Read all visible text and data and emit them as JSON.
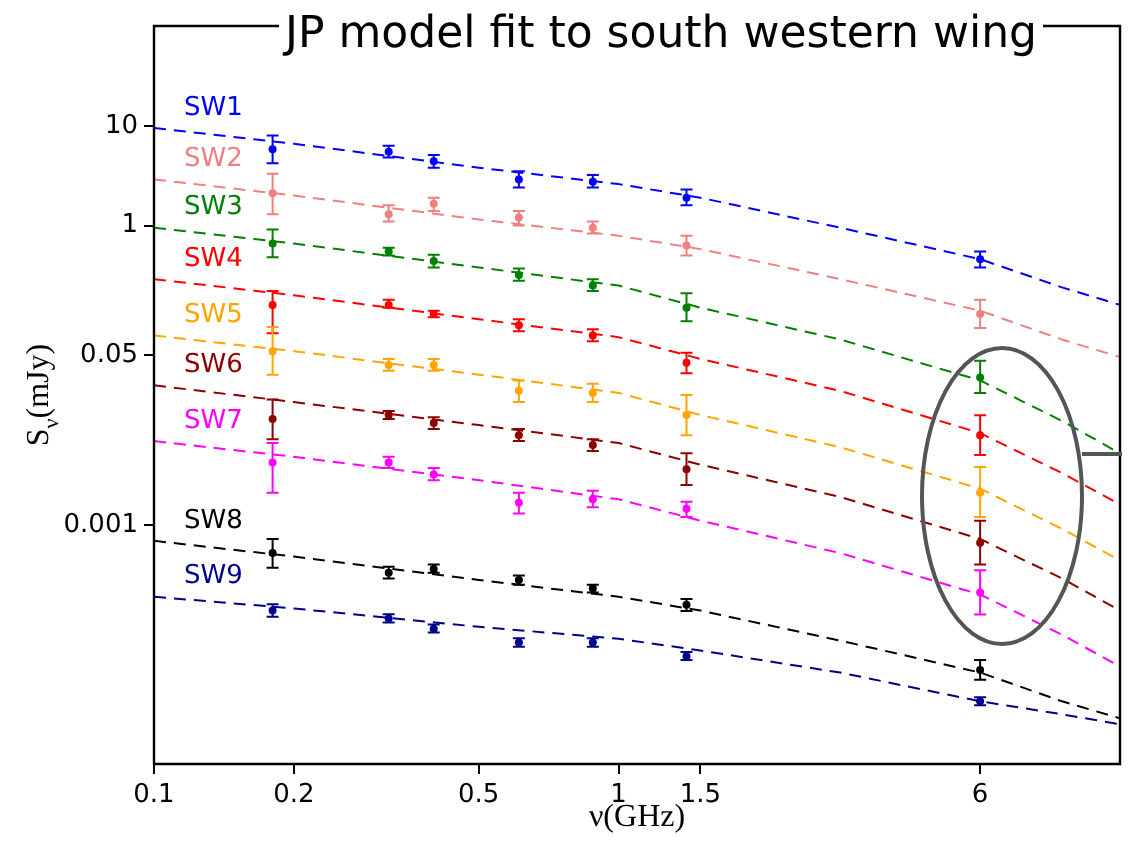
{
  "chart_data": {
    "type": "scatter",
    "title": "JP model fit to south western wing",
    "xlabel": "ν(GHz)",
    "ylabel": "S$_{ν}$(mJy)",
    "log": "xy",
    "xlim": [
      0.1,
      12
    ],
    "xticks": [
      0.1,
      0.2,
      0.5,
      1,
      1.5,
      6
    ],
    "ylim": [
      4e-06,
      100
    ],
    "yticks": [
      0.001,
      0.05,
      1,
      10
    ],
    "x": [
      0.18,
      0.32,
      0.4,
      0.61,
      0.88,
      1.4,
      6
    ],
    "series": [
      {
        "name": "SW1",
        "marker": "circle",
        "color": "#0000ff",
        "values": [
          5.8,
          5.5,
          4.4,
          2.9,
          2.75,
          1.9,
          0.46
        ],
        "errors": [
          [
            4.2,
            8.0
          ],
          [
            4.8,
            6.3
          ],
          [
            3.8,
            5.1
          ],
          [
            2.4,
            3.5
          ],
          [
            2.4,
            3.2
          ],
          [
            1.6,
            2.3
          ],
          [
            0.38,
            0.55
          ]
        ]
      },
      {
        "type": "line",
        "color": "#0000ff",
        "line_style": "dashed",
        "x": [
          0.1,
          0.2,
          0.5,
          1,
          1.5,
          3,
          6,
          9,
          12
        ],
        "values": [
          9.5,
          6.6,
          3.8,
          2.6,
          1.9,
          0.95,
          0.46,
          0.24,
          0.16
        ]
      },
      {
        "name": "SW2",
        "marker": "circle",
        "color": "#f08080",
        "values": [
          2.1,
          1.3,
          1.65,
          1.2,
          0.95,
          0.63,
          0.13
        ],
        "errors": [
          [
            1.3,
            3.3
          ],
          [
            1.1,
            1.6
          ],
          [
            1.4,
            1.9
          ],
          [
            1.0,
            1.4
          ],
          [
            0.83,
            1.1
          ],
          [
            0.5,
            0.79
          ],
          [
            0.094,
            0.18
          ]
        ]
      },
      {
        "type": "line",
        "color": "#f08080",
        "line_style": "dashed",
        "x": [
          0.1,
          0.2,
          0.5,
          1,
          1.5,
          3,
          6,
          9,
          12
        ],
        "values": [
          2.9,
          2.0,
          1.15,
          0.79,
          0.58,
          0.29,
          0.14,
          0.072,
          0.048
        ]
      },
      {
        "name": "SW3",
        "marker": "circle",
        "color": "#008000",
        "values": [
          0.66,
          0.55,
          0.44,
          0.32,
          0.25,
          0.15,
          0.03
        ],
        "errors": [
          [
            0.48,
            0.91
          ],
          [
            0.5,
            0.6
          ],
          [
            0.38,
            0.51
          ],
          [
            0.28,
            0.37
          ],
          [
            0.22,
            0.29
          ],
          [
            0.11,
            0.21
          ],
          [
            0.021,
            0.044
          ]
        ]
      },
      {
        "type": "line",
        "color": "#008000",
        "line_style": "dashed",
        "x": [
          0.1,
          0.2,
          0.5,
          1,
          1.5,
          3,
          6,
          9,
          12
        ],
        "values": [
          0.95,
          0.66,
          0.38,
          0.25,
          0.15,
          0.072,
          0.028,
          0.011,
          0.0052
        ]
      },
      {
        "name": "SW4",
        "marker": "circle",
        "color": "#ff0000",
        "values": [
          0.16,
          0.16,
          0.13,
          0.1,
          0.079,
          0.042,
          0.0079
        ],
        "errors": [
          [
            0.083,
            0.22
          ],
          [
            0.15,
            0.18
          ],
          [
            0.12,
            0.14
          ],
          [
            0.087,
            0.115
          ],
          [
            0.069,
            0.091
          ],
          [
            0.033,
            0.053
          ],
          [
            0.005,
            0.0125
          ]
        ]
      },
      {
        "type": "line",
        "color": "#ff0000",
        "line_style": "dashed",
        "x": [
          0.1,
          0.2,
          0.5,
          1,
          1.5,
          3,
          6,
          9,
          12
        ],
        "values": [
          0.29,
          0.2,
          0.115,
          0.076,
          0.046,
          0.022,
          0.0083,
          0.0033,
          0.0016
        ]
      },
      {
        "name": "SW5",
        "marker": "circle",
        "color": "#ffa500",
        "values": [
          0.055,
          0.04,
          0.04,
          0.022,
          0.021,
          0.0126,
          0.0021
        ],
        "errors": [
          [
            0.032,
            0.096
          ],
          [
            0.035,
            0.046
          ],
          [
            0.035,
            0.046
          ],
          [
            0.017,
            0.028
          ],
          [
            0.017,
            0.026
          ],
          [
            0.0079,
            0.02
          ],
          [
            0.0012,
            0.0038
          ]
        ]
      },
      {
        "type": "line",
        "color": "#ffa500",
        "line_style": "dashed",
        "x": [
          0.1,
          0.2,
          0.5,
          1,
          1.5,
          3,
          6,
          9,
          12
        ],
        "values": [
          0.079,
          0.055,
          0.032,
          0.021,
          0.0126,
          0.006,
          0.0023,
          0.00091,
          0.00044
        ]
      },
      {
        "name": "SW6",
        "marker": "circle",
        "color": "#8b0000",
        "values": [
          0.0115,
          0.0126,
          0.0105,
          0.0079,
          0.0063,
          0.0036,
          0.00066
        ],
        "errors": [
          [
            0.0072,
            0.018
          ],
          [
            0.0115,
            0.0138
          ],
          [
            0.0091,
            0.012
          ],
          [
            0.0069,
            0.0091
          ],
          [
            0.0055,
            0.0072
          ],
          [
            0.0025,
            0.0052
          ],
          [
            0.0004,
            0.0011
          ]
        ]
      },
      {
        "type": "line",
        "color": "#8b0000",
        "line_style": "dashed",
        "x": [
          0.1,
          0.2,
          0.5,
          1,
          1.5,
          3,
          6,
          9,
          12
        ],
        "values": [
          0.025,
          0.017,
          0.01,
          0.0066,
          0.004,
          0.0019,
          0.00072,
          0.00029,
          0.000138
        ]
      },
      {
        "name": "SW7",
        "marker": "circle",
        "color": "#ff00ff",
        "values": [
          0.0042,
          0.0042,
          0.0032,
          0.00166,
          0.0018,
          0.00145,
          0.00021
        ],
        "errors": [
          [
            0.0021,
            0.0066
          ],
          [
            0.0037,
            0.0048
          ],
          [
            0.0028,
            0.0037
          ],
          [
            0.0013,
            0.0021
          ],
          [
            0.0015,
            0.0022
          ],
          [
            0.0012,
            0.0017
          ],
          [
            0.000126,
            0.00035
          ]
        ]
      },
      {
        "type": "line",
        "color": "#ff00ff",
        "line_style": "dashed",
        "x": [
          0.1,
          0.2,
          0.5,
          1,
          1.5,
          3,
          6,
          9,
          12
        ],
        "values": [
          0.0069,
          0.0048,
          0.0028,
          0.0018,
          0.0011,
          0.00052,
          0.0002,
          7.9e-05,
          3.8e-05
        ]
      },
      {
        "name": "SW8",
        "marker": "circle",
        "color": "#000000",
        "values": [
          0.00052,
          0.00033,
          0.00036,
          0.00028,
          0.00023,
          0.000158,
          3.5e-05
        ],
        "errors": [
          [
            0.00037,
            0.00072
          ],
          [
            0.00029,
            0.00038
          ],
          [
            0.00033,
            0.0004
          ],
          [
            0.00025,
            0.00031
          ],
          [
            0.00021,
            0.00025
          ],
          [
            0.000137,
            0.00018
          ],
          [
            2.8e-05,
            4.4e-05
          ]
        ]
      },
      {
        "type": "line",
        "color": "#000000",
        "line_style": "dashed",
        "x": [
          0.1,
          0.2,
          0.5,
          1,
          1.5,
          3,
          6,
          9,
          12
        ],
        "values": [
          0.00069,
          0.00048,
          0.00028,
          0.00019,
          0.000138,
          6.9e-05,
          3.3e-05,
          1.7e-05,
          1.15e-05
        ]
      },
      {
        "name": "SW9",
        "marker": "circle",
        "color": "#00008b",
        "values": [
          0.000138,
          0.000115,
          9.1e-05,
          6.6e-05,
          6.6e-05,
          4.8e-05,
          1.7e-05
        ],
        "errors": [
          [
            0.00012,
            0.00016
          ],
          [
            0.000105,
            0.000127
          ],
          [
            8.3e-05,
            0.0001
          ],
          [
            6e-05,
            7.3e-05
          ],
          [
            6e-05,
            7.3e-05
          ],
          [
            4.4e-05,
            5.3e-05
          ],
          [
            1.55e-05,
            1.87e-05
          ]
        ]
      },
      {
        "type": "line",
        "color": "#00008b",
        "line_style": "dashed",
        "x": [
          0.1,
          0.2,
          0.5,
          1,
          1.5,
          3,
          6,
          9,
          12
        ],
        "values": [
          0.00019,
          0.000145,
          9.5e-05,
          7.2e-05,
          5.5e-05,
          3.3e-05,
          1.7e-05,
          1.26e-05,
          1e-05
        ]
      }
    ]
  }
}
